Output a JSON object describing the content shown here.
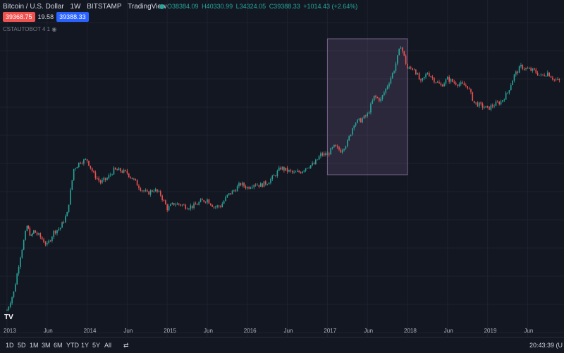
{
  "header": {
    "symbol": "Bitcoin / U.S. Dollar",
    "interval": "1W",
    "exchange": "BITSTAMP",
    "source": "TradingView",
    "open": "O38384.09",
    "high": "H40330.99",
    "low": "L34324.05",
    "close": "C39388.33",
    "change": "+1014.43 (+2.64%)"
  },
  "prices": {
    "bid": "39368.75",
    "spread": "19.58",
    "ask": "39388.33"
  },
  "indicator": {
    "label": "CSTAUTOBOT 4 1"
  },
  "timeframes": [
    "1D",
    "5D",
    "1M",
    "3M",
    "6M",
    "YTD",
    "1Y",
    "5Y",
    "All"
  ],
  "clock": "20:43:39 (U",
  "colors": {
    "background": "#131722",
    "up": "#26a69a",
    "down": "#ef5350",
    "highlight": "#9c7cb2"
  },
  "chart_data": {
    "type": "candlestick",
    "xaxis": {
      "type": "time",
      "range": [
        "2013-01",
        "2019-12"
      ],
      "tick_labels": [
        "2013",
        "Jun",
        "2014",
        "Jun",
        "2015",
        "Jun",
        "2016",
        "Jun",
        "2017",
        "Jun",
        "2018",
        "Jun",
        "2019",
        "Jun"
      ]
    },
    "yaxis": {
      "scale": "log"
    },
    "grid": true,
    "highlight_region": {
      "x_from": "2017-01",
      "x_to": "2017-12"
    },
    "series": [
      {
        "values": [
          [
            "2013-01",
            13.5
          ],
          [
            "2013-02",
            22
          ],
          [
            "2013-03",
            60
          ],
          [
            "2013-04",
            135
          ],
          [
            "2013-04-20",
            100
          ],
          [
            "2013-05",
            118
          ],
          [
            "2013-06",
            100
          ],
          [
            "2013-07",
            80
          ],
          [
            "2013-08",
            115
          ],
          [
            "2013-09",
            130
          ],
          [
            "2013-10",
            190
          ],
          [
            "2013-11",
            650
          ],
          [
            "2013-12",
            800
          ],
          [
            "2014-01",
            830
          ],
          [
            "2014-02",
            560
          ],
          [
            "2014-03",
            450
          ],
          [
            "2014-04",
            500
          ],
          [
            "2014-05",
            630
          ],
          [
            "2014-06",
            620
          ],
          [
            "2014-07",
            580
          ],
          [
            "2014-08",
            480
          ],
          [
            "2014-09",
            380
          ],
          [
            "2014-10",
            330
          ],
          [
            "2014-11",
            370
          ],
          [
            "2014-12",
            320
          ],
          [
            "2015-01",
            220
          ],
          [
            "2015-02",
            250
          ],
          [
            "2015-03",
            245
          ],
          [
            "2015-04",
            230
          ],
          [
            "2015-05",
            235
          ],
          [
            "2015-06",
            265
          ],
          [
            "2015-07",
            280
          ],
          [
            "2015-08",
            230
          ],
          [
            "2015-09",
            235
          ],
          [
            "2015-10",
            310
          ],
          [
            "2015-11",
            360
          ],
          [
            "2015-12",
            430
          ],
          [
            "2016-01",
            390
          ],
          [
            "2016-02",
            435
          ],
          [
            "2016-03",
            415
          ],
          [
            "2016-04",
            450
          ],
          [
            "2016-05",
            530
          ],
          [
            "2016-06",
            670
          ],
          [
            "2016-07",
            620
          ],
          [
            "2016-08",
            580
          ],
          [
            "2016-09",
            605
          ],
          [
            "2016-10",
            700
          ],
          [
            "2016-11",
            740
          ],
          [
            "2016-12",
            960
          ],
          [
            "2017-01",
            970
          ],
          [
            "2017-02",
            1190
          ],
          [
            "2017-03",
            1080
          ],
          [
            "2017-04",
            1350
          ],
          [
            "2017-05",
            2300
          ],
          [
            "2017-06",
            2480
          ],
          [
            "2017-07",
            2870
          ],
          [
            "2017-08",
            4700
          ],
          [
            "2017-09",
            4340
          ],
          [
            "2017-10",
            6450
          ],
          [
            "2017-11",
            9950
          ],
          [
            "2017-12",
            19500
          ],
          [
            "2018-01",
            10200
          ],
          [
            "2018-02",
            10300
          ],
          [
            "2018-03",
            6900
          ],
          [
            "2018-04",
            9200
          ],
          [
            "2018-05",
            7500
          ],
          [
            "2018-06",
            6400
          ],
          [
            "2018-07",
            7700
          ],
          [
            "2018-08",
            7000
          ],
          [
            "2018-09",
            6600
          ],
          [
            "2018-10",
            6300
          ],
          [
            "2018-11",
            4000
          ],
          [
            "2018-12",
            3700
          ],
          [
            "2019-01",
            3400
          ],
          [
            "2019-02",
            3800
          ],
          [
            "2019-03",
            4100
          ],
          [
            "2019-04",
            5300
          ],
          [
            "2019-05",
            8500
          ],
          [
            "2019-06",
            10800
          ],
          [
            "2019-07",
            10000
          ],
          [
            "2019-08",
            9600
          ],
          [
            "2019-09",
            8300
          ],
          [
            "2019-10",
            9150
          ],
          [
            "2019-11",
            7550
          ],
          [
            "2019-12",
            7200
          ]
        ]
      }
    ]
  }
}
